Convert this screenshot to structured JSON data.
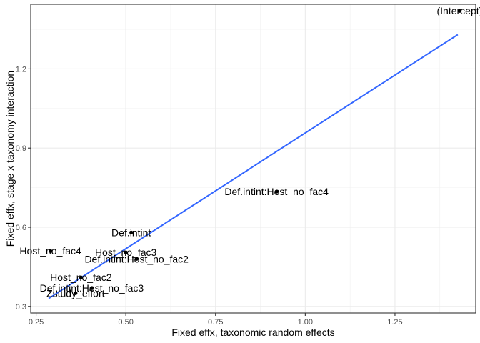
{
  "chart_data": {
    "type": "scatter",
    "xlabel": "Fixed effx, taxonomic random effects",
    "ylabel": "Fixed effx, stage x taxonomy interaction",
    "xlim": [
      0.235,
      1.475
    ],
    "ylim": [
      0.275,
      1.445
    ],
    "x_ticks": [
      0.25,
      0.5,
      0.75,
      1.0,
      1.25
    ],
    "x_tick_labels": [
      "0.25",
      "0.50",
      "0.75",
      "1.00",
      "1.25"
    ],
    "y_ticks": [
      0.3,
      0.6,
      0.9,
      1.2
    ],
    "y_tick_labels": [
      "0.3",
      "0.6",
      "0.9",
      "1.2"
    ],
    "grid": true,
    "points": [
      {
        "label": "(Intercept)",
        "x": 1.43,
        "y": 1.42
      },
      {
        "label": "Def.intint:Host_no_fac4",
        "x": 0.92,
        "y": 0.735
      },
      {
        "label": "Def.intint",
        "x": 0.515,
        "y": 0.58
      },
      {
        "label": "Host_no_fac4",
        "x": 0.29,
        "y": 0.51
      },
      {
        "label": "Host_no_fac3",
        "x": 0.5,
        "y": 0.505
      },
      {
        "label": "Def.intint:Host_no_fac2",
        "x": 0.53,
        "y": 0.48
      },
      {
        "label": "Host_no_fac2",
        "x": 0.375,
        "y": 0.41
      },
      {
        "label": "Def.intint:Host_no_fac3",
        "x": 0.405,
        "y": 0.37
      },
      {
        "label": "Zstudy_effort",
        "x": 0.36,
        "y": 0.35
      }
    ],
    "fit_line": {
      "x": [
        0.285,
        1.425
      ],
      "y": [
        0.33,
        1.33
      ],
      "color": "#3366FF"
    },
    "point_color": "#000000"
  }
}
